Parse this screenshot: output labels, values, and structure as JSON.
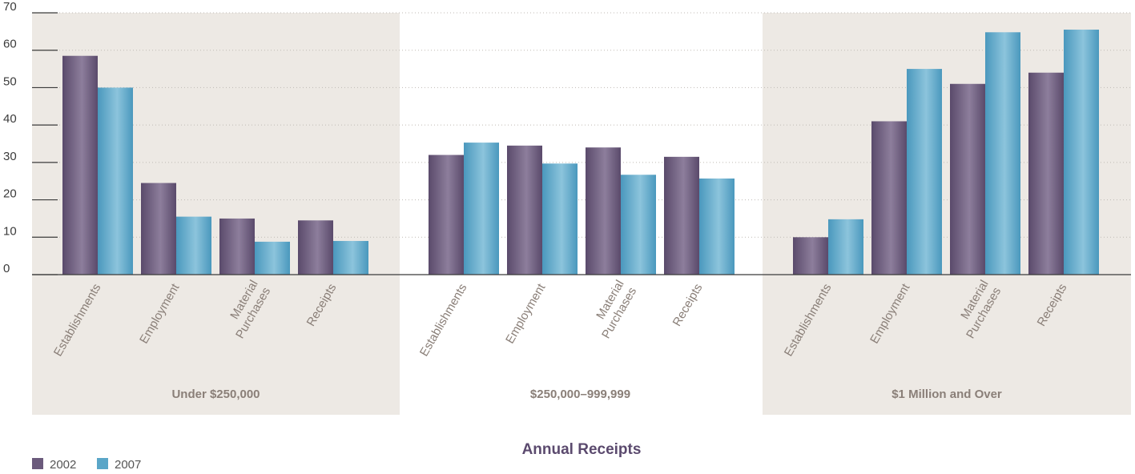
{
  "chart_data": {
    "type": "bar",
    "xlabel": "Annual Receipts",
    "ylabel": "",
    "ylim": [
      0,
      70
    ],
    "yticks": [
      0,
      10,
      20,
      30,
      40,
      50,
      60,
      70
    ],
    "grid": "horizontal dotted",
    "legend_position": "bottom-left",
    "groups": [
      {
        "label": "Under $250,000",
        "shaded": true
      },
      {
        "label": "$250,000–999,999",
        "shaded": false
      },
      {
        "label": "$1 Million and Over",
        "shaded": true
      }
    ],
    "categories": [
      "Establishments",
      "Employment",
      "Material Purchases",
      "Receipts"
    ],
    "series": [
      {
        "name": "2002",
        "color": "#6b5a7c",
        "values": [
          [
            58.5,
            24.5,
            15,
            14.5
          ],
          [
            32,
            34.5,
            34,
            31.5
          ],
          [
            10,
            41,
            51,
            54
          ]
        ]
      },
      {
        "name": "2007",
        "color": "#5aa6c8",
        "values": [
          [
            50,
            15.5,
            8.8,
            9
          ],
          [
            35.3,
            29.7,
            26.7,
            25.7
          ],
          [
            14.8,
            55,
            64.8,
            65.5
          ]
        ]
      }
    ]
  },
  "colors": {
    "panel_bg": "#ede9e4",
    "grid": "#bfbab4",
    "axis": "#3b3b3b"
  }
}
